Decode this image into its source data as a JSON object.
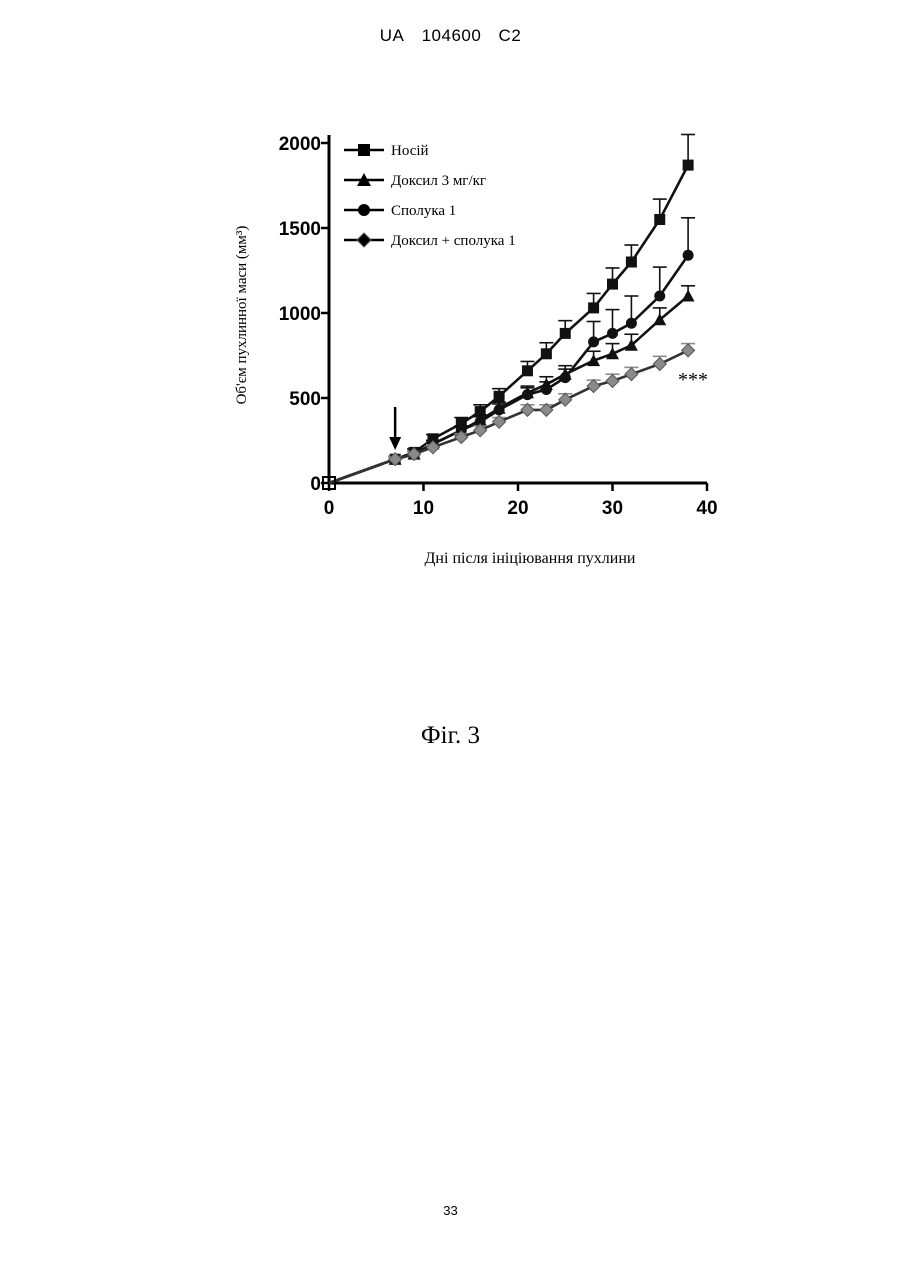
{
  "header": {
    "country": "UA",
    "number": "104600",
    "kind": "C2"
  },
  "figure": {
    "caption": "Фіг. 3"
  },
  "page": {
    "number": "33"
  },
  "chart_data": {
    "type": "line",
    "title": "",
    "xlabel": "Дні після ініціювання пухлини",
    "ylabel": "Об'єм пухлинної маси (мм³)",
    "xlim": [
      0,
      40
    ],
    "ylim": [
      0,
      2000
    ],
    "xticks": [
      0,
      10,
      20,
      30,
      40
    ],
    "yticks": [
      0,
      500,
      1000,
      1500,
      2000
    ],
    "grid": false,
    "legend": "top-left",
    "arrow_x": 7,
    "annotation": "***",
    "series": [
      {
        "name": "Носій",
        "marker": "square",
        "color": "#111111",
        "x": [
          0,
          7,
          9,
          11,
          14,
          16,
          18,
          21,
          23,
          25,
          28,
          30,
          32,
          35,
          38
        ],
        "y": [
          0,
          140,
          180,
          260,
          350,
          420,
          510,
          660,
          760,
          880,
          1030,
          1170,
          1300,
          1550,
          1870
        ],
        "err": [
          0,
          15,
          20,
          25,
          35,
          40,
          45,
          55,
          65,
          75,
          85,
          95,
          100,
          120,
          180
        ]
      },
      {
        "name": "Доксил 3 мг/кг",
        "marker": "triangle",
        "color": "#111111",
        "x": [
          0,
          7,
          9,
          11,
          14,
          16,
          18,
          21,
          23,
          25,
          28,
          30,
          32,
          35,
          38
        ],
        "y": [
          0,
          140,
          170,
          230,
          310,
          370,
          440,
          530,
          580,
          640,
          720,
          760,
          810,
          960,
          1100
        ],
        "err": [
          0,
          15,
          15,
          20,
          25,
          30,
          35,
          40,
          45,
          50,
          55,
          60,
          65,
          70,
          60
        ]
      },
      {
        "name": "Сполука 1",
        "marker": "circle",
        "color": "#111111",
        "x": [
          0,
          7,
          9,
          11,
          14,
          16,
          18,
          21,
          23,
          25,
          28,
          30,
          32,
          35,
          38
        ],
        "y": [
          0,
          140,
          170,
          230,
          310,
          360,
          430,
          520,
          550,
          620,
          830,
          880,
          940,
          1100,
          1340
        ],
        "err": [
          0,
          15,
          15,
          20,
          25,
          30,
          35,
          40,
          45,
          50,
          120,
          140,
          160,
          170,
          220
        ]
      },
      {
        "name": "Доксил + сполука 1",
        "marker": "diamond",
        "color": "#8a8a8a",
        "x": [
          0,
          7,
          9,
          11,
          14,
          16,
          18,
          21,
          23,
          25,
          28,
          30,
          32,
          35,
          38
        ],
        "y": [
          0,
          140,
          170,
          210,
          270,
          310,
          360,
          430,
          430,
          490,
          570,
          600,
          640,
          700,
          780
        ],
        "err": [
          0,
          15,
          15,
          15,
          20,
          25,
          25,
          30,
          30,
          35,
          35,
          40,
          40,
          45,
          40
        ]
      }
    ]
  }
}
